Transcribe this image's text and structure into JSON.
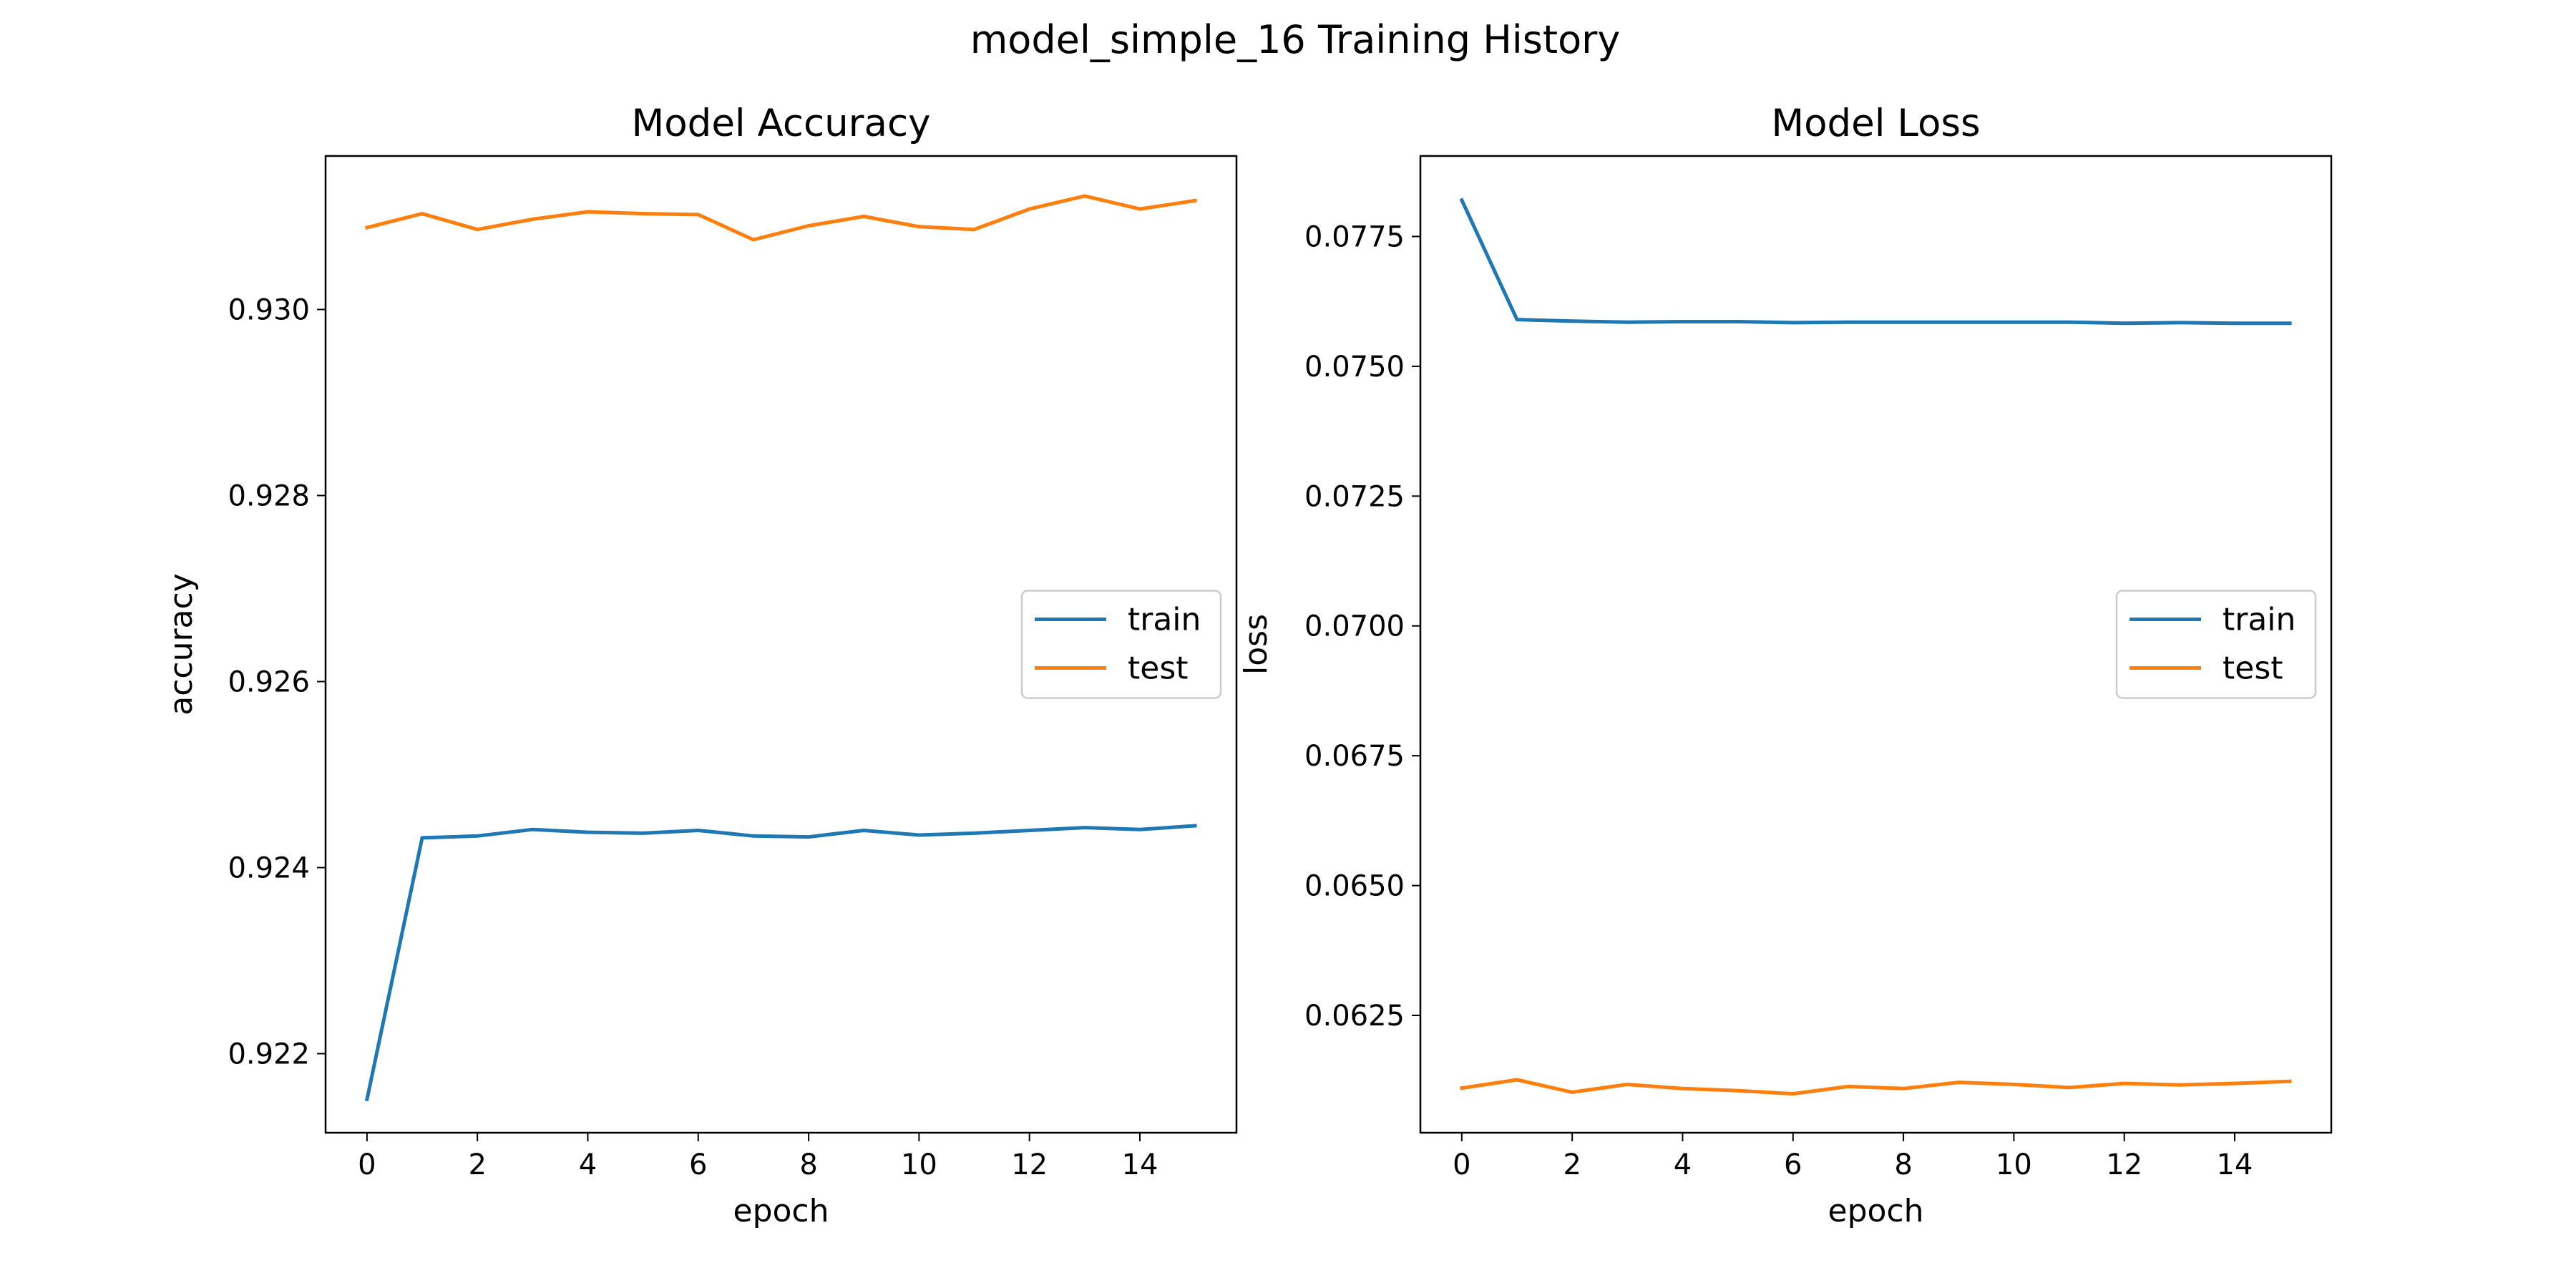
{
  "figure": {
    "suptitle": "model_simple_16 Training History"
  },
  "colors": {
    "train": "#1f77b4",
    "test": "#ff7f0e",
    "axes": "#000000",
    "background": "#ffffff"
  },
  "chart_data": [
    {
      "type": "line",
      "title": "Model Accuracy",
      "xlabel": "epoch",
      "ylabel": "accuracy",
      "x": [
        0,
        1,
        2,
        3,
        4,
        5,
        6,
        7,
        8,
        9,
        10,
        11,
        12,
        13,
        14,
        15
      ],
      "xlim": [
        -0.75,
        15.75
      ],
      "ylim": [
        0.92115,
        0.93165
      ],
      "xticks": [
        0,
        2,
        4,
        6,
        8,
        10,
        12,
        14
      ],
      "xtick_labels": [
        "0",
        "2",
        "4",
        "6",
        "8",
        "10",
        "12",
        "14"
      ],
      "yticks": [
        0.922,
        0.924,
        0.926,
        0.928,
        0.93
      ],
      "ytick_labels": [
        "0.922",
        "0.924",
        "0.926",
        "0.928",
        "0.930"
      ],
      "legend": {
        "location": "center-right",
        "entries": [
          "train",
          "test"
        ]
      },
      "grid": false,
      "series": [
        {
          "name": "train",
          "color": "#1f77b4",
          "values": [
            0.92151,
            0.92432,
            0.92434,
            0.92441,
            0.92438,
            0.92437,
            0.9244,
            0.92434,
            0.92433,
            0.9244,
            0.92435,
            0.92437,
            0.9244,
            0.92443,
            0.92441,
            0.92445
          ]
        },
        {
          "name": "test",
          "color": "#ff7f0e",
          "values": [
            0.93088,
            0.93103,
            0.93086,
            0.93097,
            0.93105,
            0.93103,
            0.93102,
            0.93075,
            0.9309,
            0.931,
            0.93089,
            0.93086,
            0.93108,
            0.93122,
            0.93108,
            0.93117
          ]
        }
      ]
    },
    {
      "type": "line",
      "title": "Model Loss",
      "xlabel": "epoch",
      "ylabel": "loss",
      "x": [
        0,
        1,
        2,
        3,
        4,
        5,
        6,
        7,
        8,
        9,
        10,
        11,
        12,
        13,
        14,
        15
      ],
      "xlim": [
        -0.75,
        15.75
      ],
      "ylim": [
        0.06024,
        0.07905
      ],
      "xticks": [
        0,
        2,
        4,
        6,
        8,
        10,
        12,
        14
      ],
      "xtick_labels": [
        "0",
        "2",
        "4",
        "6",
        "8",
        "10",
        "12",
        "14"
      ],
      "yticks": [
        0.0625,
        0.065,
        0.0675,
        0.07,
        0.0725,
        0.075,
        0.0775
      ],
      "ytick_labels": [
        "0.0625",
        "0.0650",
        "0.0675",
        "0.0700",
        "0.0725",
        "0.0750",
        "0.0775"
      ],
      "legend": {
        "location": "center-right",
        "entries": [
          "train",
          "test"
        ]
      },
      "grid": false,
      "series": [
        {
          "name": "train",
          "color": "#1f77b4",
          "values": [
            0.0782,
            0.0759,
            0.07587,
            0.07585,
            0.07586,
            0.07586,
            0.07584,
            0.07585,
            0.07585,
            0.07585,
            0.07585,
            0.07585,
            0.07583,
            0.07584,
            0.07583,
            0.07583
          ]
        },
        {
          "name": "test",
          "color": "#ff7f0e",
          "values": [
            0.0611,
            0.06126,
            0.06102,
            0.06117,
            0.06109,
            0.06105,
            0.06099,
            0.06113,
            0.06109,
            0.06121,
            0.06117,
            0.06111,
            0.06119,
            0.06116,
            0.06119,
            0.06123
          ]
        }
      ]
    }
  ]
}
